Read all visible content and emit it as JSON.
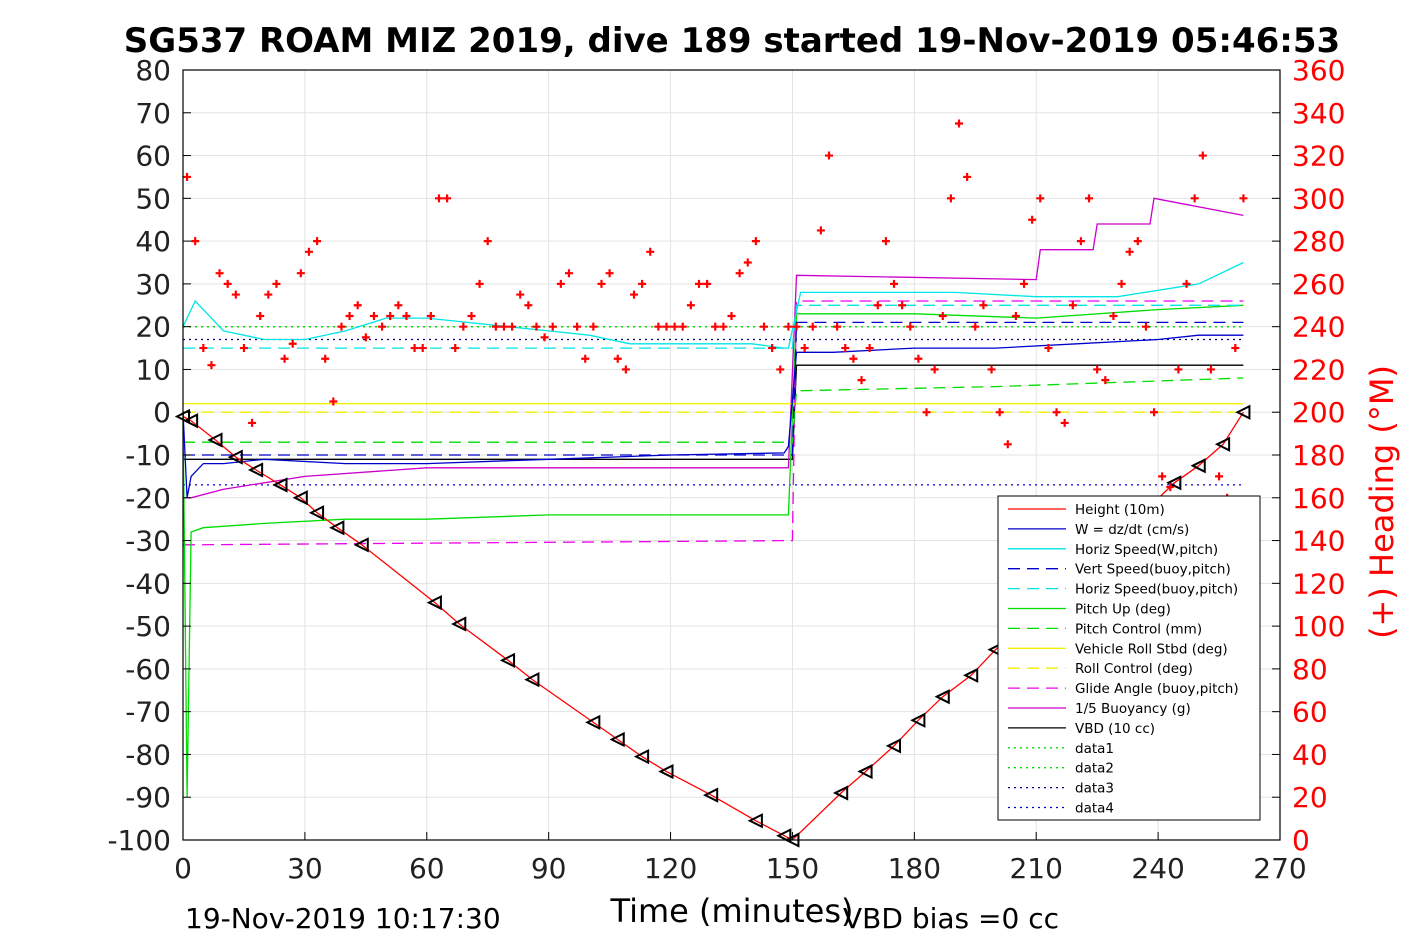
{
  "chart_data": {
    "type": "line",
    "title": "SG537 ROAM MIZ 2019, dive 189 started 19-Nov-2019 05:46:53",
    "xlabel": "Time (minutes)",
    "ylabel_right": "(+) Heading (°M)",
    "xlim": [
      0,
      270
    ],
    "ylim": [
      -100,
      80
    ],
    "ylim_right": [
      0,
      360
    ],
    "x_ticks": [
      "0",
      "30",
      "60",
      "90",
      "120",
      "150",
      "180",
      "210",
      "240",
      "270"
    ],
    "y_ticks": [
      "80",
      "70",
      "60",
      "50",
      "40",
      "30",
      "20",
      "10",
      "0",
      "-10",
      "-20",
      "-30",
      "-40",
      "-50",
      "-60",
      "-70",
      "-80",
      "-90",
      "-100"
    ],
    "y_right_ticks": [
      "360",
      "340",
      "320",
      "300",
      "280",
      "260",
      "240",
      "220",
      "200",
      "180",
      "160",
      "140",
      "120",
      "100",
      "80",
      "60",
      "40",
      "20",
      "0"
    ],
    "grid": true,
    "legend_position": "lower-right",
    "footer_time": "19-Nov-2019 10:17:30",
    "footer_vbd": "VBD bias =0 cc",
    "legend": [
      {
        "label": "Height (10m)",
        "color": "#ff0000",
        "dash": "solid"
      },
      {
        "label": "W = dz/dt (cm/s)",
        "color": "#0000cc",
        "dash": "solid"
      },
      {
        "label": "Horiz Speed(W,pitch)",
        "color": "#00e5e5",
        "dash": "solid"
      },
      {
        "label": "Vert Speed(buoy,pitch)",
        "color": "#0000cc",
        "dash": "dash"
      },
      {
        "label": "Horiz Speed(buoy,pitch)",
        "color": "#00e5e5",
        "dash": "dash"
      },
      {
        "label": "Pitch Up (deg)",
        "color": "#00dd00",
        "dash": "solid"
      },
      {
        "label": "Pitch Control (mm)",
        "color": "#00dd00",
        "dash": "dash"
      },
      {
        "label": "Vehicle Roll Stbd (deg)",
        "color": "#f0f000",
        "dash": "solid"
      },
      {
        "label": "Roll Control (deg)",
        "color": "#f0f000",
        "dash": "dash"
      },
      {
        "label": "Glide Angle (buoy,pitch)",
        "color": "#ee00ee",
        "dash": "dash"
      },
      {
        "label": "1/5 Buoyancy (g)",
        "color": "#cc00cc",
        "dash": "solid"
      },
      {
        "label": "VBD (10 cc)",
        "color": "#000000",
        "dash": "solid"
      },
      {
        "label": "data1",
        "color": "#00dd00",
        "dash": "dot"
      },
      {
        "label": "data2",
        "color": "#00dd00",
        "dash": "dot"
      },
      {
        "label": "data3",
        "color": "#000080",
        "dash": "dot"
      },
      {
        "label": "data4",
        "color": "#0000cc",
        "dash": "dot"
      }
    ],
    "series": [
      {
        "name": "Height (10m)",
        "color": "#ff0000",
        "dash": "solid",
        "x": [
          0,
          2,
          8,
          13,
          18,
          24,
          29,
          33,
          38,
          44,
          62,
          68,
          80,
          86,
          101,
          107,
          113,
          119,
          130,
          141,
          148,
          150,
          162,
          168,
          175,
          181,
          187,
          194,
          200,
          213,
          219,
          225,
          232,
          238,
          244,
          250,
          256,
          261
        ],
        "y": [
          -1,
          -2,
          -6.5,
          -10.5,
          -13.5,
          -17,
          -20,
          -23.5,
          -27,
          -31,
          -44.5,
          -49.5,
          -58,
          -62.5,
          -72.5,
          -76.5,
          -80.5,
          -84,
          -89.5,
          -95.5,
          -99,
          -100,
          -89,
          -84,
          -78,
          -72,
          -66.5,
          -61.5,
          -55.5,
          -44,
          -38.5,
          -33,
          -27.5,
          -22,
          -16.5,
          -12.5,
          -7.5,
          0
        ]
      },
      {
        "name": "W = dz/dt (cm/s)",
        "color": "#0000cc",
        "dash": "solid",
        "x": [
          0,
          1,
          2,
          5,
          10,
          20,
          40,
          60,
          90,
          120,
          148,
          149,
          151,
          160,
          180,
          200,
          220,
          240,
          250,
          261
        ],
        "y": [
          0,
          -20,
          -15,
          -12,
          -12,
          -11,
          -12,
          -12,
          -11,
          -10,
          -9.5,
          -8,
          14,
          14,
          15,
          15,
          16,
          17,
          18,
          18
        ]
      },
      {
        "name": "Horiz Speed(W,pitch)",
        "color": "#00e5e5",
        "dash": "solid",
        "x": [
          0,
          3,
          5,
          10,
          20,
          30,
          40,
          50,
          60,
          70,
          80,
          90,
          100,
          110,
          120,
          130,
          140,
          148,
          149,
          152,
          170,
          190,
          210,
          230,
          250,
          261
        ],
        "y": [
          20,
          26,
          24,
          19,
          17,
          17,
          19,
          22,
          22,
          21,
          20,
          19,
          18,
          16,
          16,
          16,
          16,
          15,
          15,
          28,
          28,
          28,
          27,
          27,
          30,
          35
        ]
      },
      {
        "name": "Vert Speed(buoy,pitch)",
        "color": "#0000cc",
        "dash": "dash",
        "x": [
          0,
          2,
          150,
          151,
          261
        ],
        "y": [
          -10,
          -10,
          -10,
          21,
          21
        ]
      },
      {
        "name": "Horiz Speed(buoy,pitch)",
        "color": "#00e5e5",
        "dash": "dash",
        "x": [
          0,
          2,
          150,
          151,
          261
        ],
        "y": [
          15,
          15,
          15,
          25,
          25
        ]
      },
      {
        "name": "Pitch Up (deg)",
        "color": "#00dd00",
        "dash": "solid",
        "x": [
          0,
          1,
          2,
          5,
          20,
          40,
          60,
          90,
          120,
          148,
          149,
          151,
          180,
          210,
          240,
          261
        ],
        "y": [
          0,
          -90,
          -28,
          -27,
          -26,
          -25,
          -25,
          -24,
          -24,
          -24,
          -24,
          23,
          23,
          22,
          24,
          25
        ]
      },
      {
        "name": "Pitch Control (mm)",
        "color": "#00dd00",
        "dash": "dash",
        "x": [
          0,
          2,
          150,
          151,
          200,
          261
        ],
        "y": [
          -7,
          -7,
          -7,
          5,
          6,
          8
        ]
      },
      {
        "name": "Vehicle Roll Stbd (deg)",
        "color": "#f0f000",
        "dash": "solid",
        "x": [
          0,
          10,
          30,
          60,
          90,
          120,
          150,
          180,
          210,
          240,
          261
        ],
        "y": [
          2,
          2,
          2,
          2,
          2,
          2,
          2,
          2,
          2,
          2,
          2
        ]
      },
      {
        "name": "Roll Control (deg)",
        "color": "#f0f000",
        "dash": "dash",
        "x": [
          0,
          261
        ],
        "y": [
          0,
          0
        ]
      },
      {
        "name": "Glide Angle (buoy,pitch)",
        "color": "#ee00ee",
        "dash": "dash",
        "x": [
          0,
          2,
          150,
          151,
          261
        ],
        "y": [
          -31,
          -31,
          -30,
          26,
          26
        ]
      },
      {
        "name": "1/5 Buoyancy (g)",
        "color": "#cc00cc",
        "dash": "solid",
        "x": [
          0,
          2,
          10,
          30,
          60,
          148,
          149,
          151,
          210,
          211,
          224,
          225,
          238,
          239,
          261
        ],
        "y": [
          -20,
          -20,
          -18,
          -15,
          -13,
          -13,
          -13,
          32,
          31,
          38,
          38,
          44,
          44,
          50,
          46
        ]
      },
      {
        "name": "VBD (10 cc)",
        "color": "#000000",
        "dash": "solid",
        "x": [
          0,
          2,
          150,
          151,
          261
        ],
        "y": [
          -11,
          -11,
          -11,
          11,
          11
        ]
      },
      {
        "name": "data1",
        "color": "#00dd00",
        "dash": "dot",
        "x": [
          0,
          261
        ],
        "y": [
          20,
          20
        ]
      },
      {
        "name": "data2",
        "color": "#00dd00",
        "dash": "dot",
        "x": [
          0,
          261
        ],
        "y": [
          20,
          20
        ]
      },
      {
        "name": "data3",
        "color": "#000080",
        "dash": "dot",
        "x": [
          0,
          261
        ],
        "y": [
          17,
          17
        ]
      },
      {
        "name": "data4",
        "color": "#0000cc",
        "dash": "dot",
        "x": [
          0,
          261
        ],
        "y": [
          -17,
          -17
        ]
      }
    ],
    "heading": {
      "name": "(+) Heading (°M)",
      "color": "#ff0000",
      "marker": "+",
      "x": [
        1,
        3,
        5,
        7,
        9,
        11,
        13,
        15,
        17,
        19,
        21,
        23,
        25,
        27,
        29,
        31,
        33,
        35,
        37,
        39,
        41,
        43,
        45,
        47,
        49,
        51,
        53,
        55,
        57,
        59,
        61,
        63,
        65,
        67,
        69,
        71,
        73,
        75,
        77,
        79,
        81,
        83,
        85,
        87,
        89,
        91,
        93,
        95,
        97,
        99,
        101,
        103,
        105,
        107,
        109,
        111,
        113,
        115,
        117,
        119,
        121,
        123,
        125,
        127,
        129,
        131,
        133,
        135,
        137,
        139,
        141,
        143,
        145,
        147,
        149,
        151,
        153,
        155,
        157,
        159,
        161,
        163,
        165,
        167,
        169,
        171,
        173,
        175,
        177,
        179,
        181,
        183,
        185,
        187,
        189,
        191,
        193,
        195,
        197,
        199,
        201,
        203,
        205,
        207,
        209,
        211,
        213,
        215,
        217,
        219,
        221,
        223,
        225,
        227,
        229,
        231,
        233,
        235,
        237,
        239,
        241,
        243,
        245,
        247,
        249,
        251,
        253,
        255,
        257,
        259,
        261
      ],
      "y": [
        310,
        280,
        230,
        222,
        265,
        260,
        255,
        230,
        195,
        245,
        255,
        260,
        225,
        232,
        265,
        275,
        280,
        225,
        205,
        240,
        245,
        250,
        235,
        245,
        240,
        245,
        250,
        245,
        230,
        230,
        245,
        300,
        300,
        230,
        240,
        245,
        260,
        280,
        240,
        240,
        240,
        255,
        250,
        240,
        235,
        240,
        260,
        265,
        240,
        225,
        240,
        260,
        265,
        225,
        220,
        255,
        260,
        275,
        240,
        240,
        240,
        240,
        250,
        260,
        260,
        240,
        240,
        245,
        265,
        270,
        280,
        240,
        230,
        220,
        240,
        240,
        230,
        240,
        285,
        320,
        240,
        230,
        225,
        215,
        230,
        250,
        280,
        260,
        250,
        240,
        225,
        200,
        220,
        245,
        300,
        335,
        310,
        240,
        250,
        220,
        200,
        185,
        245,
        260,
        290,
        300,
        230,
        200,
        195,
        250,
        280,
        300,
        220,
        215,
        245,
        260,
        275,
        280,
        240,
        200,
        170,
        165,
        220,
        260,
        300,
        320,
        220,
        170,
        160,
        230,
        300
      ]
    }
  }
}
